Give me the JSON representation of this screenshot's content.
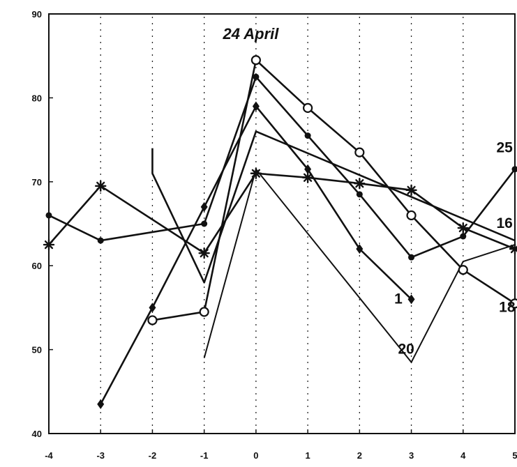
{
  "chart_data": {
    "type": "line",
    "title": "",
    "xlabel": "",
    "ylabel": "",
    "xlim": [
      -4,
      5
    ],
    "ylim": [
      40,
      90
    ],
    "x_ticks": [
      "-4",
      "-3",
      "-2",
      "-1",
      "0",
      "1",
      "2",
      "3",
      "4",
      "5"
    ],
    "y_ticks": [
      "40",
      "50",
      "60",
      "70",
      "80",
      "90"
    ],
    "grid": "vertical dotted lines at each x tick",
    "annotations": [
      {
        "text": "24 April",
        "x": -0.1,
        "y": 87,
        "size": "large",
        "italic": true
      },
      {
        "text": "25",
        "x": 4.8,
        "y": 73.5,
        "size": "large",
        "italic": false
      },
      {
        "text": "16",
        "x": 4.8,
        "y": 64.5,
        "size": "large",
        "italic": false
      },
      {
        "text": "1",
        "x": 2.75,
        "y": 55.5,
        "size": "large",
        "italic": false
      },
      {
        "text": "18",
        "x": 4.85,
        "y": 54.5,
        "size": "large",
        "italic": false
      },
      {
        "text": "20",
        "x": 2.9,
        "y": 49.5,
        "size": "large",
        "italic": false
      }
    ],
    "series": [
      {
        "marker": "circle",
        "points": [
          [
            -2,
            53.5
          ],
          [
            -1,
            54.5
          ],
          [
            0,
            84.5
          ],
          [
            1,
            78.8
          ],
          [
            2,
            73.5
          ],
          [
            3,
            66
          ],
          [
            4,
            59.5
          ],
          [
            5,
            55.5
          ]
        ]
      },
      {
        "marker": "dot",
        "points": [
          [
            -4,
            66
          ],
          [
            -3,
            63
          ],
          [
            -1,
            65
          ],
          [
            0,
            82.5
          ],
          [
            1,
            75.5
          ],
          [
            2,
            68.5
          ],
          [
            3,
            61
          ],
          [
            4,
            63.5
          ],
          [
            5,
            71.5
          ]
        ]
      },
      {
        "marker": "diamond",
        "points": [
          [
            -3,
            43.5
          ],
          [
            -2,
            55
          ],
          [
            -1,
            67
          ],
          [
            0,
            79
          ],
          [
            1,
            71.5
          ],
          [
            2,
            62
          ],
          [
            3,
            56
          ]
        ]
      },
      {
        "marker": "star",
        "points": [
          [
            -4,
            62.5
          ],
          [
            -3,
            69.5
          ],
          [
            -1,
            61.5
          ],
          [
            0,
            71
          ],
          [
            1,
            70.5
          ],
          [
            2,
            69.8
          ],
          [
            3,
            69
          ],
          [
            4,
            64.5
          ],
          [
            5,
            62
          ]
        ]
      },
      {
        "marker": "star",
        "points": [
          [
            -1,
            49
          ],
          [
            0,
            71.5
          ],
          [
            3,
            48.5
          ],
          [
            4,
            60.5
          ],
          [
            5,
            62.5
          ]
        ]
      },
      {
        "marker": "star",
        "points": [
          [
            -2,
            74
          ],
          [
            -2,
            71
          ],
          [
            -1,
            58
          ],
          [
            0,
            76
          ],
          [
            5,
            63
          ]
        ]
      }
    ]
  }
}
